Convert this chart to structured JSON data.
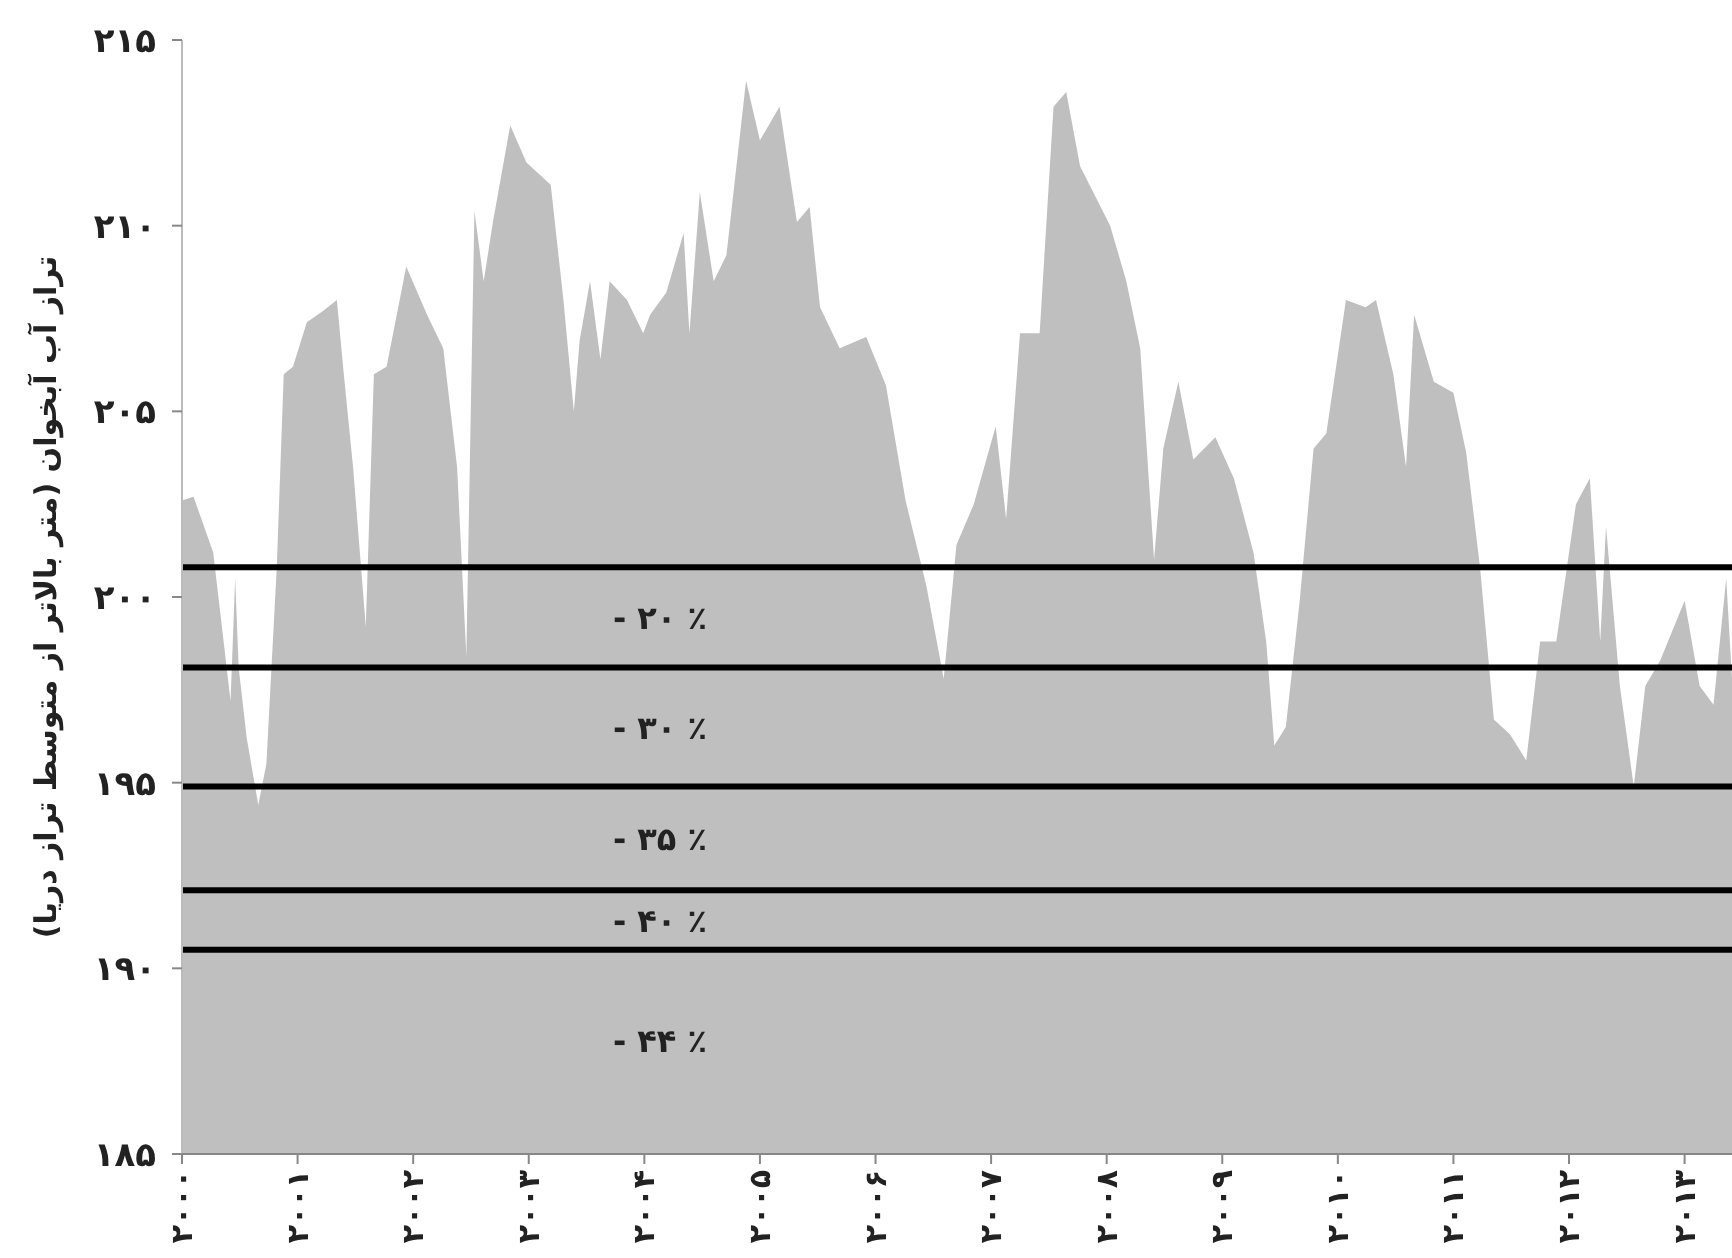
{
  "chart_data": {
    "type": "area",
    "ylabel": "تراز آب آبخوان (متر بالاتر از متوسط تراز دریا)",
    "xlim": [
      2000,
      2013.41
    ],
    "ylim": [
      185,
      215
    ],
    "xticks": [
      {
        "value": 2000,
        "label": "۲۰۰۰"
      },
      {
        "value": 2001,
        "label": "۲۰۰۱"
      },
      {
        "value": 2002,
        "label": "۲۰۰۲"
      },
      {
        "value": 2003,
        "label": "۲۰۰۳"
      },
      {
        "value": 2004,
        "label": "۲۰۰۴"
      },
      {
        "value": 2005,
        "label": "۲۰۰۵"
      },
      {
        "value": 2006,
        "label": "۲۰۰۶"
      },
      {
        "value": 2007,
        "label": "۲۰۰۷"
      },
      {
        "value": 2008,
        "label": "۲۰۰۸"
      },
      {
        "value": 2009,
        "label": "۲۰۰۹"
      },
      {
        "value": 2010,
        "label": "۲۰۱۰"
      },
      {
        "value": 2011,
        "label": "۲۰۱۱"
      },
      {
        "value": 2012,
        "label": "۲۰۱۲"
      },
      {
        "value": 2013,
        "label": "۲۰۱۳"
      }
    ],
    "yticks": [
      {
        "value": 185,
        "label": "۱۸۵"
      },
      {
        "value": 190,
        "label": "۱۹۰"
      },
      {
        "value": 195,
        "label": "۱۹۵"
      },
      {
        "value": 200,
        "label": "۲۰۰"
      },
      {
        "value": 205,
        "label": "۲۰۵"
      },
      {
        "value": 210,
        "label": "۲۱۰"
      },
      {
        "value": 215,
        "label": "۲۱۵"
      }
    ],
    "series": [
      {
        "color": "#bfbfbf",
        "x": [
          2000.0,
          2000.1,
          2000.27,
          2000.36,
          2000.42,
          2000.46,
          2000.49,
          2000.56,
          2000.66,
          2000.73,
          2000.82,
          2000.88,
          2000.96,
          2001.08,
          2001.22,
          2001.34,
          2001.4,
          2001.48,
          2001.59,
          2001.66,
          2001.77,
          2001.94,
          2002.12,
          2002.26,
          2002.38,
          2002.46,
          2002.53,
          2002.61,
          2002.69,
          2002.84,
          2002.98,
          2003.19,
          2003.3,
          2003.39,
          2003.44,
          2003.53,
          2003.62,
          2003.7,
          2003.85,
          2003.99,
          2004.05,
          2004.19,
          2004.34,
          2004.39,
          2004.48,
          2004.6,
          2004.71,
          2004.88,
          2005.0,
          2005.17,
          2005.32,
          2005.43,
          2005.52,
          2005.69,
          2005.92,
          2006.09,
          2006.26,
          2006.44,
          2006.59,
          2006.7,
          2006.85,
          2007.04,
          2007.13,
          2007.25,
          2007.42,
          2007.54,
          2007.65,
          2007.77,
          2008.03,
          2008.17,
          2008.29,
          2008.41,
          2008.49,
          2008.62,
          2008.75,
          2008.94,
          2009.1,
          2009.27,
          2009.38,
          2009.45,
          2009.55,
          2009.67,
          2009.79,
          2009.9,
          2010.07,
          2010.24,
          2010.33,
          2010.48,
          2010.59,
          2010.66,
          2010.83,
          2011.0,
          2011.11,
          2011.23,
          2011.35,
          2011.49,
          2011.63,
          2011.75,
          2011.89,
          2012.06,
          2012.18,
          2012.27,
          2012.32,
          2012.44,
          2012.56,
          2012.66,
          2012.79,
          2013.0,
          2013.13,
          2013.25,
          2013.36,
          2013.41
        ],
        "values": [
          202.6,
          202.7,
          201.2,
          198.8,
          197.2,
          200.5,
          198.1,
          196.2,
          194.4,
          195.5,
          200.8,
          206.0,
          206.2,
          207.4,
          207.7,
          208.0,
          206.0,
          203.5,
          199.2,
          206.0,
          206.2,
          208.9,
          207.6,
          206.7,
          203.5,
          198.4,
          210.4,
          208.5,
          210.1,
          212.7,
          211.7,
          211.1,
          208.0,
          205.0,
          206.9,
          208.5,
          206.4,
          208.5,
          208.0,
          207.1,
          207.6,
          208.2,
          209.8,
          207.1,
          210.9,
          208.5,
          209.2,
          213.9,
          212.3,
          213.2,
          210.1,
          210.5,
          207.8,
          206.7,
          207.0,
          205.7,
          202.6,
          200.3,
          197.8,
          201.4,
          202.5,
          204.6,
          202.1,
          207.1,
          207.1,
          213.2,
          213.6,
          211.6,
          210.0,
          208.5,
          206.7,
          201.0,
          204.0,
          205.8,
          203.7,
          204.3,
          203.2,
          201.2,
          198.8,
          196.0,
          196.5,
          199.9,
          204.0,
          204.4,
          208.0,
          207.8,
          208.0,
          206.0,
          203.5,
          207.6,
          205.8,
          205.5,
          203.9,
          200.8,
          196.7,
          196.3,
          195.6,
          198.8,
          198.8,
          202.5,
          203.2,
          198.8,
          201.9,
          197.6,
          194.9,
          197.6,
          198.3,
          199.9,
          197.6,
          197.1,
          200.5,
          197.8
        ]
      }
    ],
    "ref_lines": [
      {
        "axis": "y",
        "value": 200.8,
        "label": "- ۲۰ ٪",
        "color": "#000000"
      },
      {
        "axis": "y",
        "value": 198.1,
        "label": "- ۳۰ ٪",
        "color": "#000000"
      },
      {
        "axis": "y",
        "value": 194.9,
        "label": "- ۳۵ ٪",
        "color": "#000000"
      },
      {
        "axis": "y",
        "value": 192.1,
        "label": "- ۴۰ ٪",
        "color": "#000000"
      },
      {
        "axis": "y",
        "value": 190.5,
        "label": "- ۴۴ ٪",
        "color": "#000000"
      }
    ]
  }
}
